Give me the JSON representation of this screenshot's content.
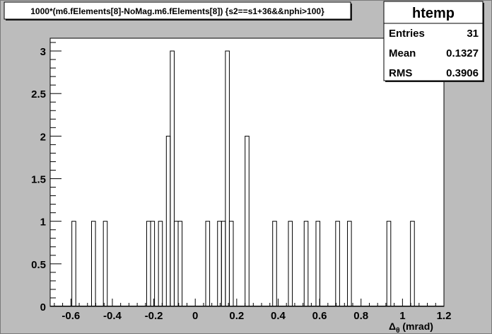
{
  "chart_data": {
    "type": "bar",
    "style": "step-histogram",
    "title": "1000*(m6.fElements[8]-NoMag.m6.fElements[8]) {s2==s1+36&&nphi>100}",
    "xlabel": "Δθ (mrad)",
    "xlabel_main": "Δ",
    "xlabel_sub": "θ",
    "xlabel_unit": " (mrad)",
    "ylabel": "",
    "xlim": [
      -0.7,
      1.2
    ],
    "ylim": [
      0,
      3.15
    ],
    "bin_width": 0.019,
    "x_ticks": [
      -0.6,
      -0.4,
      -0.2,
      0,
      0.2,
      0.4,
      0.6,
      0.8,
      1,
      1.2
    ],
    "x_tick_labels": [
      "-0.6",
      "-0.4",
      "-0.2",
      "0",
      "0.2",
      "0.4",
      "0.6",
      "0.8",
      "1",
      "1.2"
    ],
    "y_ticks": [
      0,
      0.5,
      1,
      1.5,
      2,
      2.5,
      3
    ],
    "y_tick_labels": [
      "0",
      "0.5",
      "1",
      "1.5",
      "2",
      "2.5",
      "3"
    ],
    "bins": [
      {
        "x": -0.586,
        "value": 1
      },
      {
        "x": -0.491,
        "value": 1
      },
      {
        "x": -0.434,
        "value": 1
      },
      {
        "x": -0.225,
        "value": 1
      },
      {
        "x": -0.206,
        "value": 1
      },
      {
        "x": -0.168,
        "value": 1
      },
      {
        "x": -0.13,
        "value": 2
      },
      {
        "x": -0.111,
        "value": 3
      },
      {
        "x": -0.092,
        "value": 1
      },
      {
        "x": -0.073,
        "value": 1
      },
      {
        "x": 0.06,
        "value": 1
      },
      {
        "x": 0.117,
        "value": 1
      },
      {
        "x": 0.136,
        "value": 1
      },
      {
        "x": 0.155,
        "value": 3
      },
      {
        "x": 0.174,
        "value": 1
      },
      {
        "x": 0.25,
        "value": 2
      },
      {
        "x": 0.383,
        "value": 1
      },
      {
        "x": 0.459,
        "value": 1
      },
      {
        "x": 0.535,
        "value": 1
      },
      {
        "x": 0.592,
        "value": 1
      },
      {
        "x": 0.687,
        "value": 1
      },
      {
        "x": 0.744,
        "value": 1
      },
      {
        "x": 0.934,
        "value": 1
      },
      {
        "x": 1.048,
        "value": 1
      }
    ]
  },
  "stats": {
    "name": "htemp",
    "rows": [
      {
        "label": "Entries",
        "value": "31"
      },
      {
        "label": "Mean",
        "value": "0.1327"
      },
      {
        "label": "RMS",
        "value": "0.3906"
      }
    ]
  },
  "colors": {
    "canvas": "#bcbcbc",
    "frame": "#ffffff",
    "line": "#000000",
    "shadow": "#1a1a1a"
  }
}
